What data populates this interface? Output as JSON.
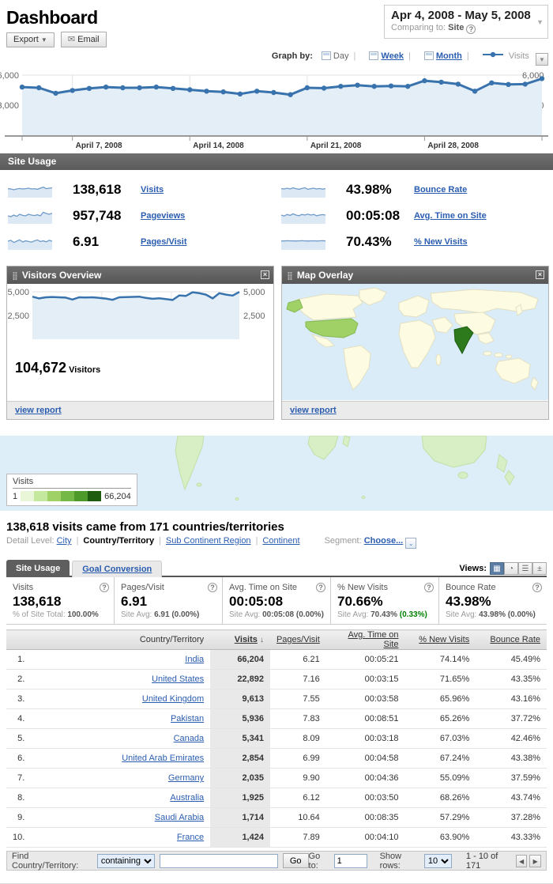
{
  "colors": {
    "accent_blue": "#3973ad",
    "chart_fill": "#e4eef7",
    "link_blue": "#2a5db0",
    "header_gray": "#636363",
    "positive_green": "#008000",
    "map_ocean": "#d9ecf7",
    "map_land": "#fdfbe2",
    "map_country_medium": "#9fd166",
    "map_country_high": "#2c7a1c",
    "legend_swatches": [
      "#e9f7d8",
      "#c4e89e",
      "#9fd166",
      "#74b947",
      "#4d9a2a",
      "#1e5c10"
    ]
  },
  "header": {
    "title": "Dashboard",
    "export_label": "Export",
    "email_label": "Email",
    "date_range": "Apr 4, 2008 - May 5, 2008",
    "comparing_label": "Comparing to:",
    "comparing_value": "Site"
  },
  "graph_by": {
    "label": "Graph by:",
    "day": "Day",
    "week": "Week",
    "month": "Month",
    "metric": "Visits"
  },
  "chart_data": [
    {
      "name": "visits-over-time",
      "type": "line",
      "series_label": "Visits",
      "date_start": "Apr 4, 2008",
      "date_end": "May 5, 2008",
      "values": [
        4810,
        4740,
        4190,
        4470,
        4670,
        4810,
        4740,
        4740,
        4810,
        4670,
        4540,
        4400,
        4330,
        4120,
        4400,
        4260,
        4050,
        4740,
        4700,
        4880,
        5000,
        4880,
        4920,
        4880,
        5440,
        5300,
        5100,
        4400,
        5230,
        5070,
        5100,
        5650
      ],
      "y_max": 6000,
      "y_ticks": [
        {
          "value": 6000,
          "label": "6,000"
        },
        {
          "value": 3000,
          "label": "3,000"
        }
      ],
      "x_gridlines": [
        {
          "index": 3,
          "label": "April 7, 2008"
        },
        {
          "index": 10,
          "label": "April 14, 2008"
        },
        {
          "index": 17,
          "label": "April 21, 2008"
        },
        {
          "index": 24,
          "label": "April 28, 2008"
        }
      ],
      "grid": true,
      "legend_position": "top-right"
    },
    {
      "name": "visitors-overview",
      "type": "line",
      "series_label": "Visitors",
      "values": [
        4480,
        4300,
        4420,
        4450,
        4420,
        4380,
        4180,
        4420,
        4400,
        4420,
        4350,
        4280,
        4150,
        4420,
        4440,
        4460,
        4480,
        4350,
        4260,
        4320,
        4230,
        4130,
        4620,
        4570,
        4950,
        4850,
        4700,
        4300,
        4850,
        4700,
        4600,
        4980
      ],
      "y_max": 5000,
      "y_ticks": [
        {
          "value": 5000,
          "label": "5,000"
        },
        {
          "value": 2500,
          "label": "2,500"
        }
      ],
      "grid": true
    },
    {
      "name": "map-overlay",
      "type": "heatmap",
      "metric": "Visits",
      "min": 1,
      "max": 66204,
      "highlights": [
        {
          "country": "India",
          "level": "high"
        },
        {
          "country": "United States",
          "level": "medium"
        }
      ]
    }
  ],
  "site_usage": {
    "title": "Site Usage",
    "metrics": [
      {
        "value": "138,618",
        "label": "Visits",
        "spark": [
          0.52,
          0.5,
          0.45,
          0.5,
          0.53,
          0.5,
          0.52,
          0.55,
          0.5,
          0.52,
          0.48,
          0.55,
          0.62,
          0.52,
          0.55,
          0.57
        ]
      },
      {
        "value": "957,748",
        "label": "Pageviews",
        "spark": [
          0.45,
          0.4,
          0.5,
          0.42,
          0.55,
          0.48,
          0.45,
          0.55,
          0.5,
          0.47,
          0.52,
          0.45,
          0.68,
          0.6,
          0.55,
          0.62
        ]
      },
      {
        "value": "6.91",
        "label": "Pages/Visit",
        "spark": [
          0.5,
          0.55,
          0.42,
          0.5,
          0.58,
          0.45,
          0.52,
          0.48,
          0.44,
          0.52,
          0.58,
          0.48,
          0.52,
          0.46,
          0.55,
          0.5
        ]
      },
      {
        "value": "43.98%",
        "label": "Bounce Rate",
        "spark": [
          0.52,
          0.5,
          0.55,
          0.5,
          0.57,
          0.52,
          0.48,
          0.53,
          0.58,
          0.48,
          0.52,
          0.55,
          0.5,
          0.53,
          0.49,
          0.52
        ]
      },
      {
        "value": "00:05:08",
        "label": "Avg. Time on Site",
        "spark": [
          0.5,
          0.44,
          0.54,
          0.48,
          0.58,
          0.5,
          0.46,
          0.54,
          0.5,
          0.56,
          0.5,
          0.54,
          0.46,
          0.5,
          0.53,
          0.5
        ]
      },
      {
        "value": "70.43%",
        "label": "% New Visits",
        "spark": [
          0.52,
          0.51,
          0.53,
          0.52,
          0.52,
          0.51,
          0.52,
          0.53,
          0.52,
          0.51,
          0.52,
          0.52,
          0.51,
          0.52,
          0.53,
          0.52
        ]
      }
    ]
  },
  "widgets": {
    "visitors_overview": {
      "title": "Visitors Overview",
      "value": "104,672",
      "value_label": "Visitors",
      "footer_link": "view report"
    },
    "map_overlay": {
      "title": "Map Overlay",
      "footer_link": "view report"
    }
  },
  "map_legend": {
    "label": "Visits",
    "min": "1",
    "max": "66,204"
  },
  "summary": {
    "heading": "138,618 visits came from 171 countries/territories",
    "detail_level_label": "Detail Level:",
    "detail_levels": [
      {
        "label": "City",
        "current": false
      },
      {
        "label": "Country/Territory",
        "current": true
      },
      {
        "label": "Sub Continent Region",
        "current": false
      },
      {
        "label": "Continent",
        "current": false
      }
    ],
    "segment_label": "Segment:",
    "segment_value": "Choose..."
  },
  "report": {
    "tabs": [
      {
        "label": "Site Usage",
        "active": true
      },
      {
        "label": "Goal Conversion",
        "active": false
      }
    ],
    "views_label": "Views:",
    "views": [
      {
        "name": "table-view",
        "glyph": "▦",
        "active": true
      },
      {
        "name": "pie-view",
        "glyph": "◔",
        "active": false
      },
      {
        "name": "bar-view",
        "glyph": "☰",
        "active": false
      },
      {
        "name": "comparison-view",
        "glyph": "±",
        "active": false
      }
    ],
    "scorecards": [
      {
        "label": "Visits",
        "value": "138,618",
        "sub_prefix": "% of Site Total:",
        "sub_value": "100.00%",
        "sub_delta": ""
      },
      {
        "label": "Pages/Visit",
        "value": "6.91",
        "sub_prefix": "Site Avg:",
        "sub_value": "6.91",
        "sub_delta": "(0.00%)"
      },
      {
        "label": "Avg. Time on Site",
        "value": "00:05:08",
        "sub_prefix": "Site Avg:",
        "sub_value": "00:05:08",
        "sub_delta": "(0.00%)"
      },
      {
        "label": "% New Visits",
        "value": "70.66%",
        "sub_prefix": "Site Avg:",
        "sub_value": "70.43%",
        "sub_delta": "(0.33%)"
      },
      {
        "label": "Bounce Rate",
        "value": "43.98%",
        "sub_prefix": "Site Avg:",
        "sub_value": "43.98%",
        "sub_delta": "(0.00%)"
      }
    ],
    "table": {
      "columns": [
        "Country/Territory",
        "Visits",
        "Pages/Visit",
        "Avg. Time on Site",
        "% New Visits",
        "Bounce Rate"
      ],
      "sort_column": "Visits",
      "rows": [
        {
          "rank": "1.",
          "country": "India",
          "visits": "66,204",
          "pages_visit": "6.21",
          "avg_time": "00:05:21",
          "new_visits": "74.14%",
          "bounce": "45.49%"
        },
        {
          "rank": "2.",
          "country": "United States",
          "visits": "22,892",
          "pages_visit": "7.16",
          "avg_time": "00:03:15",
          "new_visits": "71.65%",
          "bounce": "43.35%"
        },
        {
          "rank": "3.",
          "country": "United Kingdom",
          "visits": "9,613",
          "pages_visit": "7.55",
          "avg_time": "00:03:58",
          "new_visits": "65.96%",
          "bounce": "43.16%"
        },
        {
          "rank": "4.",
          "country": "Pakistan",
          "visits": "5,936",
          "pages_visit": "7.83",
          "avg_time": "00:08:51",
          "new_visits": "65.26%",
          "bounce": "37.72%"
        },
        {
          "rank": "5.",
          "country": "Canada",
          "visits": "5,341",
          "pages_visit": "8.09",
          "avg_time": "00:03:18",
          "new_visits": "67.03%",
          "bounce": "42.46%"
        },
        {
          "rank": "6.",
          "country": "United Arab Emirates",
          "visits": "2,854",
          "pages_visit": "6.99",
          "avg_time": "00:04:58",
          "new_visits": "67.24%",
          "bounce": "43.38%"
        },
        {
          "rank": "7.",
          "country": "Germany",
          "visits": "2,035",
          "pages_visit": "9.90",
          "avg_time": "00:04:36",
          "new_visits": "55.09%",
          "bounce": "37.59%"
        },
        {
          "rank": "8.",
          "country": "Australia",
          "visits": "1,925",
          "pages_visit": "6.12",
          "avg_time": "00:03:50",
          "new_visits": "68.26%",
          "bounce": "43.74%"
        },
        {
          "rank": "9.",
          "country": "Saudi Arabia",
          "visits": "1,714",
          "pages_visit": "10.64",
          "avg_time": "00:08:35",
          "new_visits": "57.29%",
          "bounce": "37.28%"
        },
        {
          "rank": "10.",
          "country": "France",
          "visits": "1,424",
          "pages_visit": "7.89",
          "avg_time": "00:04:10",
          "new_visits": "63.90%",
          "bounce": "43.33%"
        }
      ]
    },
    "footer": {
      "find_label": "Find Country/Territory:",
      "match_options": [
        "containing"
      ],
      "search_value": "",
      "go_label": "Go",
      "goto_label": "Go to:",
      "goto_value": "1",
      "show_rows_label": "Show rows:",
      "show_rows_options": [
        "10"
      ],
      "range_text": "1 - 10 of 171"
    }
  }
}
